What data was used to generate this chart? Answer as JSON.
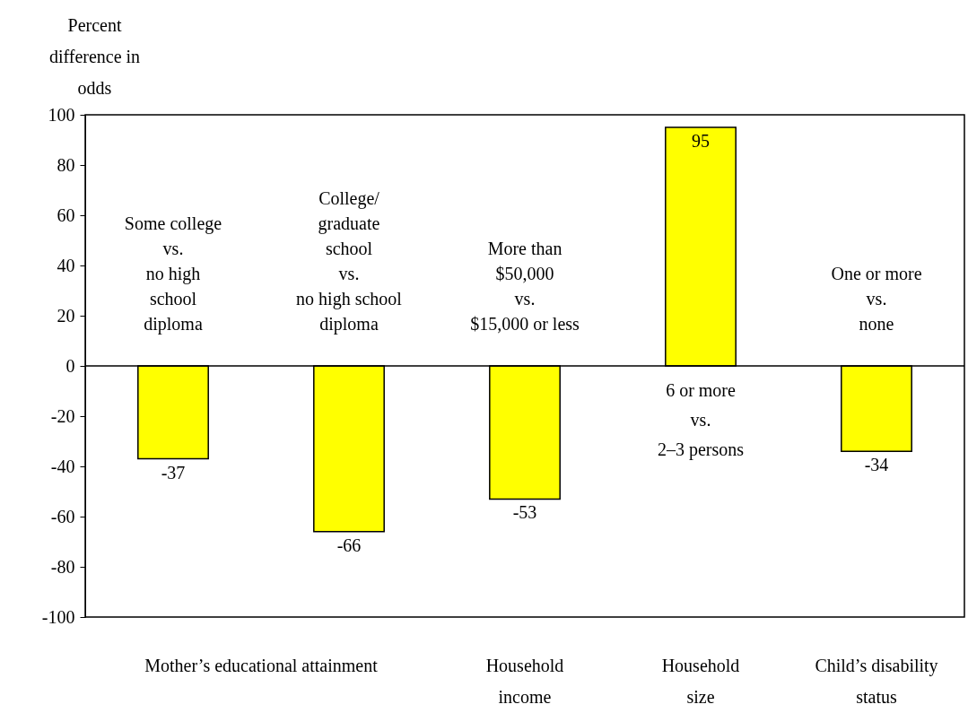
{
  "chart_data": {
    "type": "bar",
    "ylabel": "Percent\ndifference in\nodds",
    "categories": [
      "Some college\nvs.\nno high\nschool\ndiploma",
      "College/\ngraduate\nschool\nvs.\nno high school\ndiploma",
      "More than\n$50,000\nvs.\n$15,000 or less",
      "6 or more\nvs.\n2–3 persons",
      "One or more\nvs.\nnone"
    ],
    "values": [
      -37,
      -66,
      -53,
      95,
      -34
    ],
    "color": "#ffff00",
    "ylim": [
      -100,
      100
    ],
    "yticks": [
      -100,
      -80,
      -60,
      -40,
      -20,
      0,
      20,
      40,
      60,
      80,
      100
    ],
    "data_labels": true,
    "grid": false,
    "annotations": [
      "Mother’s educational attainment",
      "Household\nincome",
      "Household\nsize",
      "Child’s disability\nstatus"
    ]
  }
}
